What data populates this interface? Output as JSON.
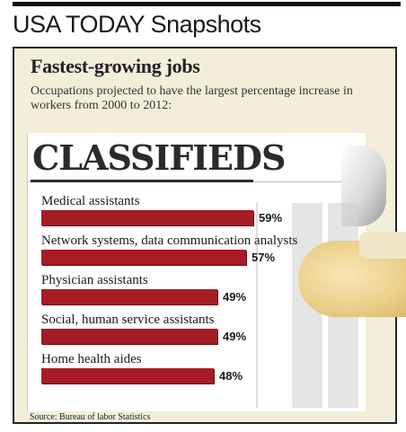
{
  "header": {
    "brand": "USA TODAY Snapshots",
    "accent": "#111111"
  },
  "decor": {
    "classifieds_text": "CLASSIFIEDS",
    "bar_color": "#a51c24",
    "panel_color": "#f3eeda"
  },
  "chart_data": {
    "type": "bar",
    "orientation": "horizontal",
    "title": "Fastest-growing jobs",
    "subtitle": "Occupations projected to have the largest percentage increase in workers from 2000 to 2012:",
    "categories": [
      "Medical assistants",
      "Network systems, data communication analysts",
      "Physician assistants",
      "Social, human service assistants",
      "Home health aides"
    ],
    "values": [
      59,
      57,
      49,
      49,
      48
    ],
    "value_labels": [
      "59%",
      "57%",
      "49%",
      "49%",
      "48%"
    ],
    "unit": "%",
    "xlim": [
      0,
      100
    ],
    "grid": true,
    "legend": "none",
    "source": "Source: Bureau of labor Statistics"
  }
}
